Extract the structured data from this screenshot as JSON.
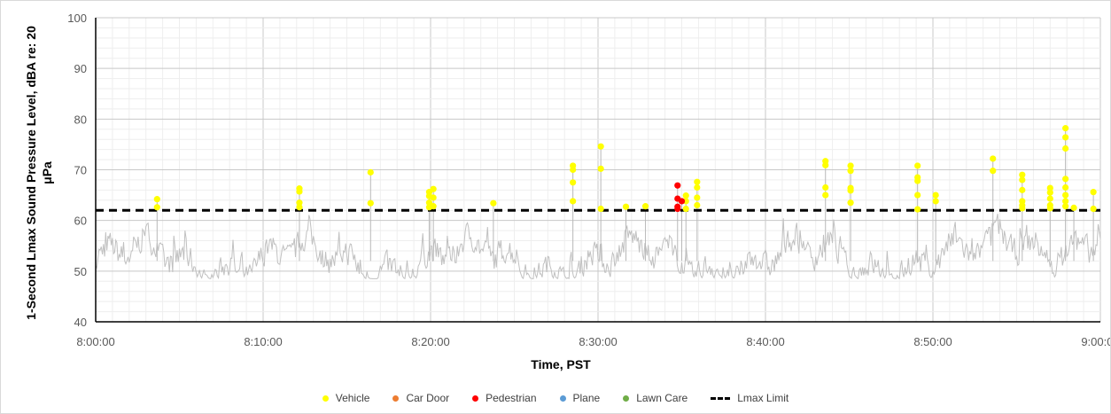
{
  "chart_data": {
    "type": "scatter",
    "title": "",
    "xlabel": "Time, PST",
    "ylabel": "1-Second Lmax Sound Pressure Level, dBA re: 20 μPa",
    "ylim": [
      40,
      100
    ],
    "yticks": [
      "40",
      "50",
      "60",
      "70",
      "80",
      "90",
      "100"
    ],
    "xlim": [
      "8:00:00",
      "9:00:00"
    ],
    "xticks": [
      "8:00:00",
      "8:10:00",
      "8:20:00",
      "8:30:00",
      "8:40:00",
      "8:50:00",
      "9:00:00"
    ],
    "grid": true,
    "legend_position": "bottom",
    "lmax_limit": 62,
    "series": [
      {
        "name": "Vehicle",
        "color": "#ffff00",
        "points": [
          [
            "8:03:40",
            64.2
          ],
          [
            "8:03:40",
            62.6
          ],
          [
            "8:12:10",
            66.3
          ],
          [
            "8:12:10",
            65.7
          ],
          [
            "8:12:10",
            63.5
          ],
          [
            "8:12:10",
            62.6
          ],
          [
            "8:16:25",
            69.5
          ],
          [
            "8:16:25",
            63.4
          ],
          [
            "8:19:55",
            65.6
          ],
          [
            "8:19:55",
            64.8
          ],
          [
            "8:19:55",
            63.5
          ],
          [
            "8:19:55",
            62.6
          ],
          [
            "8:20:10",
            66.2
          ],
          [
            "8:20:10",
            64.5
          ],
          [
            "8:20:10",
            62.8
          ],
          [
            "8:23:45",
            63.4
          ],
          [
            "8:28:30",
            70.8
          ],
          [
            "8:28:30",
            70.0
          ],
          [
            "8:28:30",
            67.5
          ],
          [
            "8:28:30",
            63.8
          ],
          [
            "8:30:10",
            74.6
          ],
          [
            "8:30:10",
            70.2
          ],
          [
            "8:30:10",
            62.3
          ],
          [
            "8:31:40",
            62.7
          ],
          [
            "8:32:50",
            62.8
          ],
          [
            "8:35:15",
            64.9
          ],
          [
            "8:35:15",
            63.8
          ],
          [
            "8:35:15",
            62.3
          ],
          [
            "8:35:55",
            67.6
          ],
          [
            "8:35:55",
            66.5
          ],
          [
            "8:35:55",
            64.5
          ],
          [
            "8:35:55",
            63.0
          ],
          [
            "8:43:35",
            71.7
          ],
          [
            "8:43:35",
            70.9
          ],
          [
            "8:43:35",
            66.5
          ],
          [
            "8:43:35",
            65.0
          ],
          [
            "8:45:05",
            70.8
          ],
          [
            "8:45:05",
            69.8
          ],
          [
            "8:45:05",
            66.4
          ],
          [
            "8:45:05",
            65.9
          ],
          [
            "8:45:05",
            63.5
          ],
          [
            "8:49:05",
            70.8
          ],
          [
            "8:49:05",
            68.5
          ],
          [
            "8:49:05",
            67.8
          ],
          [
            "8:49:05",
            65.0
          ],
          [
            "8:49:05",
            62.2
          ],
          [
            "8:50:10",
            65.0
          ],
          [
            "8:50:10",
            63.8
          ],
          [
            "8:53:35",
            72.2
          ],
          [
            "8:53:35",
            69.8
          ],
          [
            "8:55:20",
            69.0
          ],
          [
            "8:55:20",
            68.0
          ],
          [
            "8:55:20",
            66.0
          ],
          [
            "8:55:20",
            63.8
          ],
          [
            "8:55:20",
            63.0
          ],
          [
            "8:55:20",
            62.4
          ],
          [
            "8:57:00",
            66.4
          ],
          [
            "8:57:00",
            65.5
          ],
          [
            "8:57:00",
            64.3
          ],
          [
            "8:57:00",
            63.0
          ],
          [
            "8:57:00",
            62.4
          ],
          [
            "8:57:55",
            78.2
          ],
          [
            "8:57:55",
            76.4
          ],
          [
            "8:57:55",
            74.2
          ],
          [
            "8:57:55",
            68.2
          ],
          [
            "8:57:55",
            66.5
          ],
          [
            "8:57:55",
            65.0
          ],
          [
            "8:57:55",
            63.8
          ],
          [
            "8:57:55",
            62.8
          ],
          [
            "8:58:25",
            62.5
          ],
          [
            "8:59:35",
            65.6
          ],
          [
            "8:59:35",
            62.3
          ]
        ]
      },
      {
        "name": "Car Door",
        "color": "#ed7d31",
        "points": []
      },
      {
        "name": "Pedestrian",
        "color": "#ff0000",
        "points": [
          [
            "8:34:45",
            66.9
          ],
          [
            "8:34:45",
            64.3
          ],
          [
            "8:34:45",
            62.7
          ],
          [
            "8:34:45",
            62.3
          ],
          [
            "8:35:00",
            63.8
          ]
        ]
      },
      {
        "name": "Plane",
        "color": "#5b9bd5",
        "points": []
      },
      {
        "name": "Lawn Care",
        "color": "#70ad47",
        "points": []
      },
      {
        "name": "Lmax Limit",
        "style": "dashed-line",
        "color": "#000000",
        "points": []
      }
    ]
  }
}
